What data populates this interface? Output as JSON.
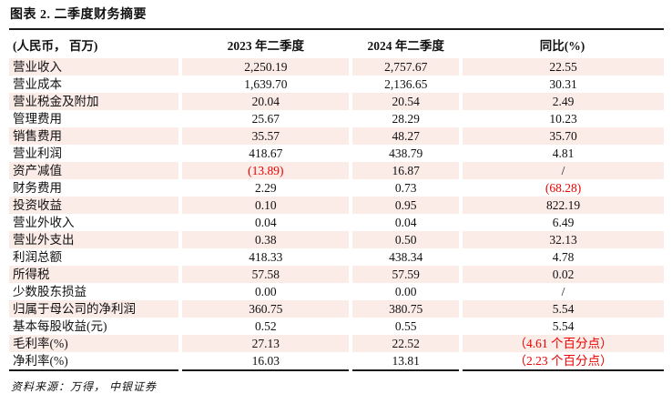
{
  "title": "图表 2. 二季度财务摘要",
  "source_note": "资料来源：万得， 中银证券",
  "colors": {
    "row_shading_pink": "#fcece8",
    "negative_red": "#ed0000",
    "rule_black": "#1a1a1a"
  },
  "table": {
    "columns": [
      "(人民币， 百万)",
      "2023 年二季度",
      "2024 年二季度",
      "同比(%)"
    ],
    "rows": [
      {
        "cells": [
          "营业收入",
          "2,250.19",
          "2,757.67",
          "22.55"
        ],
        "red": []
      },
      {
        "cells": [
          "营业成本",
          "1,639.70",
          "2,136.65",
          "30.31"
        ],
        "red": []
      },
      {
        "cells": [
          "营业税金及附加",
          "20.04",
          "20.54",
          "2.49"
        ],
        "red": []
      },
      {
        "cells": [
          "管理费用",
          "25.67",
          "28.29",
          "10.23"
        ],
        "red": []
      },
      {
        "cells": [
          "销售费用",
          "35.57",
          "48.27",
          "35.70"
        ],
        "red": []
      },
      {
        "cells": [
          "营业利润",
          "418.67",
          "438.79",
          "4.81"
        ],
        "red": []
      },
      {
        "cells": [
          "资产减值",
          "(13.89)",
          "16.87",
          "/"
        ],
        "red": [
          1
        ]
      },
      {
        "cells": [
          "财务费用",
          "2.29",
          "0.73",
          "(68.28)"
        ],
        "red": [
          3
        ]
      },
      {
        "cells": [
          "投资收益",
          "0.10",
          "0.95",
          "822.19"
        ],
        "red": []
      },
      {
        "cells": [
          "营业外收入",
          "0.04",
          "0.04",
          "6.49"
        ],
        "red": []
      },
      {
        "cells": [
          "营业外支出",
          "0.38",
          "0.50",
          "32.13"
        ],
        "red": []
      },
      {
        "cells": [
          "利润总额",
          "418.33",
          "438.34",
          "4.78"
        ],
        "red": []
      },
      {
        "cells": [
          "所得税",
          "57.58",
          "57.59",
          "0.02"
        ],
        "red": []
      },
      {
        "cells": [
          "少数股东损益",
          "0.00",
          "0.00",
          "/"
        ],
        "red": []
      },
      {
        "cells": [
          "归属于母公司的净利润",
          "360.75",
          "380.75",
          "5.54"
        ],
        "red": []
      },
      {
        "cells": [
          "基本每股收益(元)",
          "0.52",
          "0.55",
          "5.54"
        ],
        "red": []
      },
      {
        "cells": [
          "毛利率(%)",
          "27.13",
          "22.52",
          "（4.61 个百分点）"
        ],
        "red": [
          3
        ]
      },
      {
        "cells": [
          "净利率(%)",
          "16.03",
          "13.81",
          "（2.23 个百分点）"
        ],
        "red": [
          3
        ]
      }
    ]
  }
}
